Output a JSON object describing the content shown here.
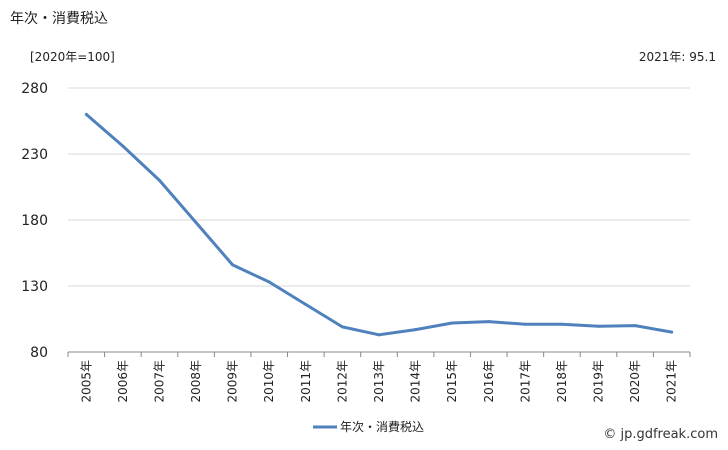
{
  "header": {
    "title": "年次・消費税込",
    "unit": "[2020年=100]",
    "latest": "2021年: 95.1"
  },
  "footer": {
    "credit": "© jp.gdfreak.com"
  },
  "chart_data": {
    "type": "line",
    "title": "年次・消費税込",
    "xlabel": "",
    "ylabel": "[2020年=100]",
    "categories": [
      "2005年",
      "2006年",
      "2007年",
      "2008年",
      "2009年",
      "2010年",
      "2011年",
      "2012年",
      "2013年",
      "2014年",
      "2015年",
      "2016年",
      "2017年",
      "2018年",
      "2019年",
      "2020年",
      "2021年"
    ],
    "series": [
      {
        "name": "年次・消費税込",
        "values": [
          260,
          236,
          210,
          178,
          146,
          133,
          116,
          99,
          93,
          97,
          102,
          103,
          101,
          101,
          99.5,
          100,
          95.1
        ]
      }
    ],
    "yticks": [
      80,
      130,
      180,
      230,
      280
    ],
    "ylim": [
      80,
      280
    ],
    "grid": true,
    "legend": "bottom",
    "color": "#4f81bd"
  }
}
